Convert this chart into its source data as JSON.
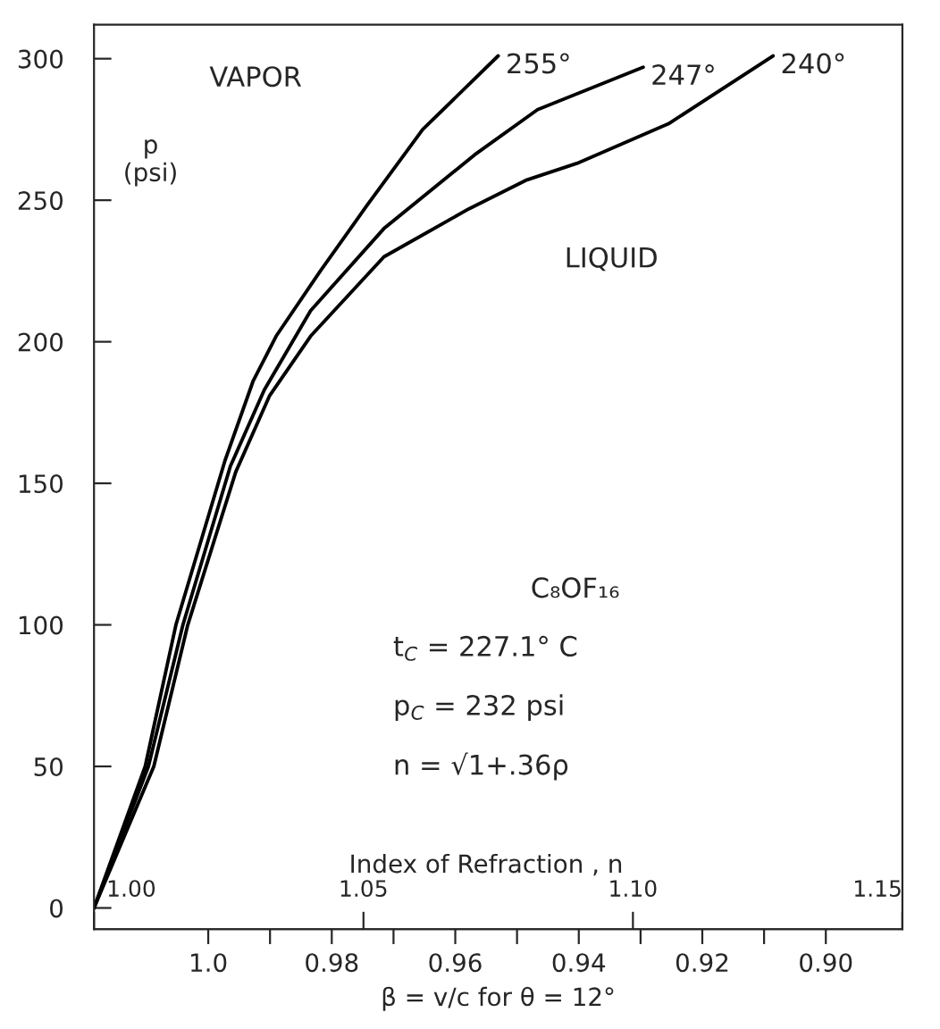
{
  "chart_data": {
    "type": "line",
    "xlabel": "Index of Refraction , n",
    "x2label": "β = v/c for θ = 12°",
    "ylabel": "p\n(psi)",
    "xlim": [
      1.0,
      1.15
    ],
    "xticks": [
      {
        "value": 1.0,
        "label": "1.00"
      },
      {
        "value": 1.05,
        "label": "1.05"
      },
      {
        "value": 1.1,
        "label": "1.10"
      },
      {
        "value": 1.15,
        "label": "1.15"
      }
    ],
    "x2lim": [
      1.0185,
      0.8876
    ],
    "x2ticks": [
      {
        "value": 1.0,
        "label": "1.0"
      },
      {
        "value": 0.99,
        "label": null
      },
      {
        "value": 0.98,
        "label": "0.98"
      },
      {
        "value": 0.97,
        "label": null
      },
      {
        "value": 0.96,
        "label": "0.96"
      },
      {
        "value": 0.95,
        "label": null
      },
      {
        "value": 0.94,
        "label": "0.94"
      },
      {
        "value": 0.93,
        "label": null
      },
      {
        "value": 0.92,
        "label": "0.92"
      },
      {
        "value": 0.91,
        "label": null
      },
      {
        "value": 0.9,
        "label": "0.90"
      }
    ],
    "ylim": [
      -7.5,
      312
    ],
    "yticks": [
      0,
      50,
      100,
      150,
      200,
      250,
      300
    ],
    "grid": false,
    "legend": false,
    "line_style": "solid",
    "marker": "none",
    "series": [
      {
        "name": "255°",
        "color": "#000000",
        "x": [
          1.0,
          1.0095,
          1.0152,
          1.0243,
          1.0295,
          1.0338,
          1.042,
          1.0506,
          1.061,
          1.075
        ],
        "values": [
          0,
          50,
          100,
          158,
          186,
          202,
          225,
          248,
          275,
          301
        ]
      },
      {
        "name": "247°",
        "color": "#000000",
        "x": [
          1.0,
          1.0101,
          1.0165,
          1.0253,
          1.0316,
          1.0402,
          1.0538,
          1.0706,
          1.0823,
          1.1019
        ],
        "values": [
          0,
          50,
          100,
          156,
          183,
          211,
          240,
          266,
          282,
          297
        ]
      },
      {
        "name": "240°",
        "color": "#000000",
        "x": [
          1.0,
          1.0111,
          1.0174,
          1.0263,
          1.0326,
          1.0402,
          1.0538,
          1.0696,
          1.0801,
          1.0896,
          1.1066,
          1.126
        ],
        "values": [
          0,
          50,
          100,
          154,
          181,
          202,
          230,
          247,
          257,
          263,
          277,
          301
        ]
      }
    ],
    "annotations": [
      "VAPOR",
      "LIQUID",
      "C₈OF₁₆",
      "t$_{C}$ = 227.1° C",
      "p$_{C}$ = 232 psi",
      "n = √1+.36ρ"
    ]
  }
}
